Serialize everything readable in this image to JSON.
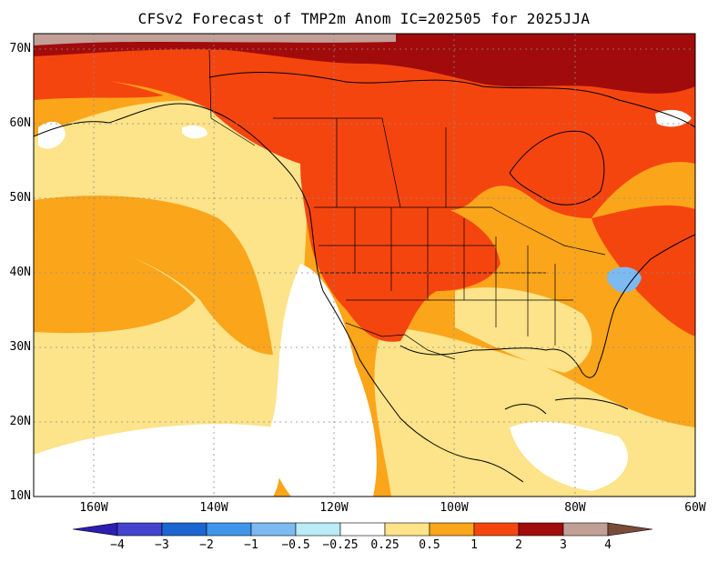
{
  "title": "CFSv2 Forecast of TMP2m Anom IC=202505 for 2025JJA",
  "lat_labels": [
    "70N",
    "60N",
    "50N",
    "40N",
    "30N",
    "20N",
    "10N"
  ],
  "lon_labels": [
    "160W",
    "140W",
    "120W",
    "100W",
    "80W",
    "60W"
  ],
  "colorbar": {
    "labels": [
      "−4",
      "−3",
      "−2",
      "−1",
      "−0.5",
      "−0.25",
      "0.25",
      "0.5",
      "1",
      "2",
      "3",
      "4"
    ],
    "colors": [
      "#2a1fb0",
      "#4343cf",
      "#1d66d2",
      "#3f95ea",
      "#7dbaf2",
      "#b9ecf7",
      "#ffffff",
      "#fde389",
      "#fba51b",
      "#f5450f",
      "#a20b0b",
      "#c19f97",
      "#7a4a3a"
    ]
  },
  "map_extent": {
    "lon": [
      -170,
      -60
    ],
    "lat": [
      10,
      72
    ]
  },
  "anomaly_colors": {
    "neutral": "#ffffff",
    "warm_025": "#fde389",
    "warm_05": "#fba51b",
    "warm_1": "#f5450f",
    "warm_2": "#a20b0b",
    "warm_3": "#c19f97",
    "cool_025": "#b9ecf7",
    "cool_05": "#7dbaf2"
  }
}
